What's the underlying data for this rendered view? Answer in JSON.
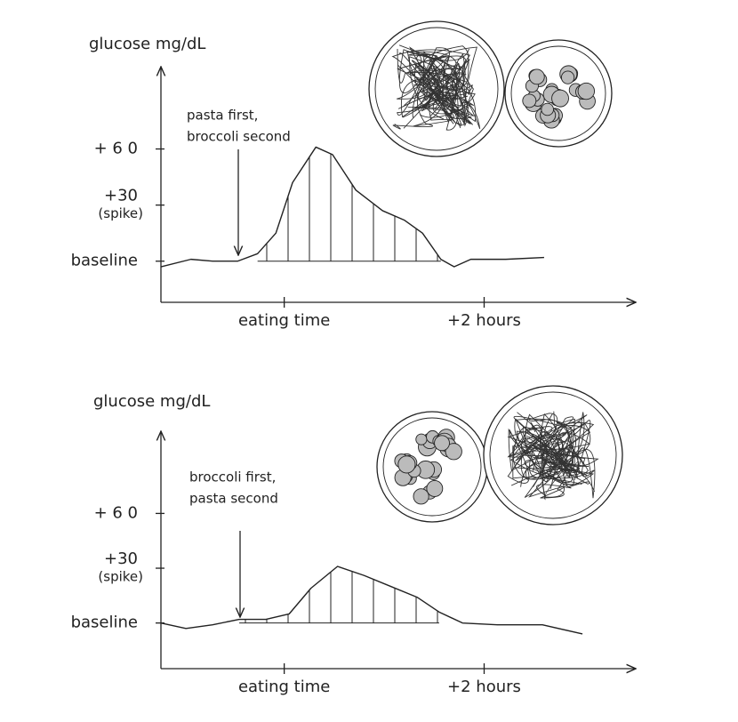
{
  "chart_data": [
    {
      "type": "line",
      "y_label": "glucose mg/dL",
      "annotation": [
        "pasta first,",
        "broccoli second"
      ],
      "color": "#222222",
      "x": [
        -74,
        -56,
        -43,
        -28,
        -16,
        -5,
        5,
        19,
        29,
        43,
        59,
        72,
        83,
        94,
        102,
        112,
        133,
        156
      ],
      "values": [
        -3,
        1,
        0,
        0,
        4,
        15,
        42,
        61,
        57,
        38,
        27,
        22,
        15,
        1,
        -3,
        1,
        1,
        2
      ],
      "xlim": [
        -74,
        211
      ],
      "ylim": [
        -22,
        104
      ],
      "xticks": [
        {
          "value": 0,
          "label": "eating time"
        },
        {
          "value": 120,
          "label": "+2 hours"
        }
      ],
      "yticks": [
        {
          "value": 0,
          "label": "baseline"
        },
        {
          "value": 30,
          "label": "+30",
          "note": "(spike)"
        },
        {
          "value": 60,
          "label": "+ 6 0"
        }
      ]
    },
    {
      "type": "line",
      "y_label": "glucose mg/dL",
      "annotation": [
        "broccoli first,",
        "pasta second"
      ],
      "color": "#222222",
      "x": [
        -74,
        -59,
        -43,
        -27,
        -11,
        3,
        16,
        32,
        48,
        64,
        80,
        93,
        107,
        128,
        155,
        179
      ],
      "values": [
        0,
        -3,
        -1,
        2,
        2,
        5,
        19,
        31,
        26,
        20,
        14,
        6,
        0,
        -1,
        -1,
        -6
      ],
      "xlim": [
        -74,
        211
      ],
      "ylim": [
        -25,
        105
      ],
      "xticks": [
        {
          "value": 0,
          "label": "eating time"
        },
        {
          "value": 120,
          "label": "+2 hours"
        }
      ],
      "yticks": [
        {
          "value": 0,
          "label": "baseline"
        },
        {
          "value": 30,
          "label": "+30",
          "note": "(spike)"
        },
        {
          "value": 60,
          "label": "+ 6 0"
        }
      ]
    }
  ]
}
